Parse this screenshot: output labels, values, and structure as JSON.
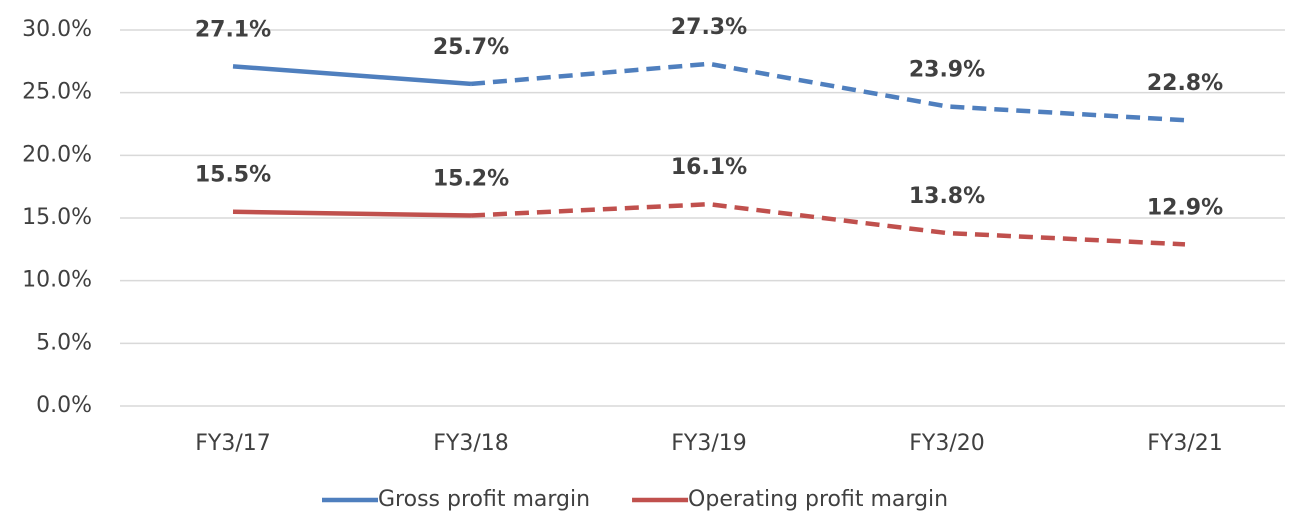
{
  "chart_data": {
    "type": "line",
    "categories": [
      "FY3/17",
      "FY3/18",
      "FY3/19",
      "FY3/20",
      "FY3/21"
    ],
    "series": [
      {
        "name": "Gross profit margin",
        "color": "#4f7fbe",
        "values": [
          27.1,
          25.7,
          27.3,
          23.9,
          22.8
        ],
        "value_labels": [
          "27.1%",
          "25.7%",
          "27.3%",
          "23.9%",
          "22.8%"
        ],
        "dash_start": 1
      },
      {
        "name": "Operating profit margin",
        "color": "#c0504d",
        "values": [
          15.5,
          15.2,
          16.1,
          13.8,
          12.9
        ],
        "value_labels": [
          "15.5%",
          "15.2%",
          "16.1%",
          "13.8%",
          "12.9%"
        ],
        "dash_start": 1
      }
    ],
    "ylim": [
      0,
      30
    ],
    "yticks": [
      {
        "value": 0,
        "label": "0.0%"
      },
      {
        "value": 5,
        "label": "5.0%"
      },
      {
        "value": 10,
        "label": "10.0%"
      },
      {
        "value": 15,
        "label": "15.0%"
      },
      {
        "value": 20,
        "label": "20.0%"
      },
      {
        "value": 25,
        "label": "25.0%"
      },
      {
        "value": 30,
        "label": "30.0%"
      }
    ],
    "grid": true,
    "legend": "bottom"
  }
}
